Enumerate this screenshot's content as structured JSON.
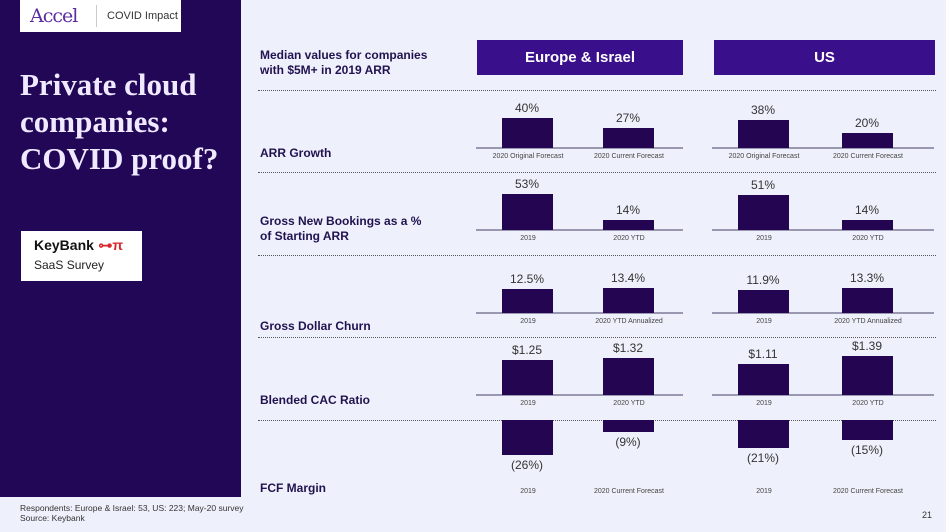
{
  "header": {
    "logo": "Accel",
    "section": "COVID Impact"
  },
  "sidebar": {
    "title": "Private cloud companies: COVID proof?",
    "badge_brand": "KeyBank",
    "badge_subtitle": "SaaS Survey"
  },
  "chart_data": {
    "type": "bar",
    "title": "Median values for companies with $5M+ in 2019 ARR",
    "groups": [
      "Europe & Israel",
      "US"
    ],
    "metrics": [
      {
        "name": "ARR Growth",
        "categories": [
          "2020 Original Forecast",
          "2020 Current Forecast"
        ],
        "series": [
          {
            "name": "Europe & Israel",
            "values": [
              40,
              27
            ],
            "labels": [
              "40%",
              "27%"
            ]
          },
          {
            "name": "US",
            "values": [
              38,
              20
            ],
            "labels": [
              "38%",
              "20%"
            ]
          }
        ]
      },
      {
        "name": "Gross New Bookings as a % of Starting ARR",
        "categories": [
          "2019",
          "2020 YTD"
        ],
        "series": [
          {
            "name": "Europe & Israel",
            "values": [
              53,
              14
            ],
            "labels": [
              "53%",
              "14%"
            ]
          },
          {
            "name": "US",
            "values": [
              51,
              14
            ],
            "labels": [
              "51%",
              "14%"
            ]
          }
        ]
      },
      {
        "name": "Gross Dollar Churn",
        "categories": [
          "2019",
          "2020 YTD Annualized"
        ],
        "series": [
          {
            "name": "Europe & Israel",
            "values": [
              12.5,
              13.4
            ],
            "labels": [
              "12.5%",
              "13.4%"
            ]
          },
          {
            "name": "US",
            "values": [
              11.9,
              13.3
            ],
            "labels": [
              "11.9%",
              "13.3%"
            ]
          }
        ]
      },
      {
        "name": "Blended CAC Ratio",
        "categories": [
          "2019",
          "2020 YTD"
        ],
        "series": [
          {
            "name": "Europe & Israel",
            "values": [
              1.25,
              1.32
            ],
            "labels": [
              "$1.25",
              "$1.32"
            ]
          },
          {
            "name": "US",
            "values": [
              1.11,
              1.39
            ],
            "labels": [
              "$1.11",
              "$1.39"
            ]
          }
        ]
      },
      {
        "name": "FCF Margin",
        "categories": [
          "2019",
          "2020 Current Forecast"
        ],
        "series": [
          {
            "name": "Europe & Israel",
            "values": [
              -26,
              -9
            ],
            "labels": [
              "(26%)",
              "(9%)"
            ]
          },
          {
            "name": "US",
            "values": [
              -21,
              -15
            ],
            "labels": [
              "(21%)",
              "(15%)"
            ]
          }
        ]
      }
    ]
  },
  "footer": {
    "respondents": "Respondents: Europe & Israel: 53, US: 223; May-20 survey",
    "source": "Source: Keybank",
    "page": "21"
  },
  "colors": {
    "sidebar": "#230757",
    "bar": "#240552",
    "header": "#3a0f8c"
  }
}
